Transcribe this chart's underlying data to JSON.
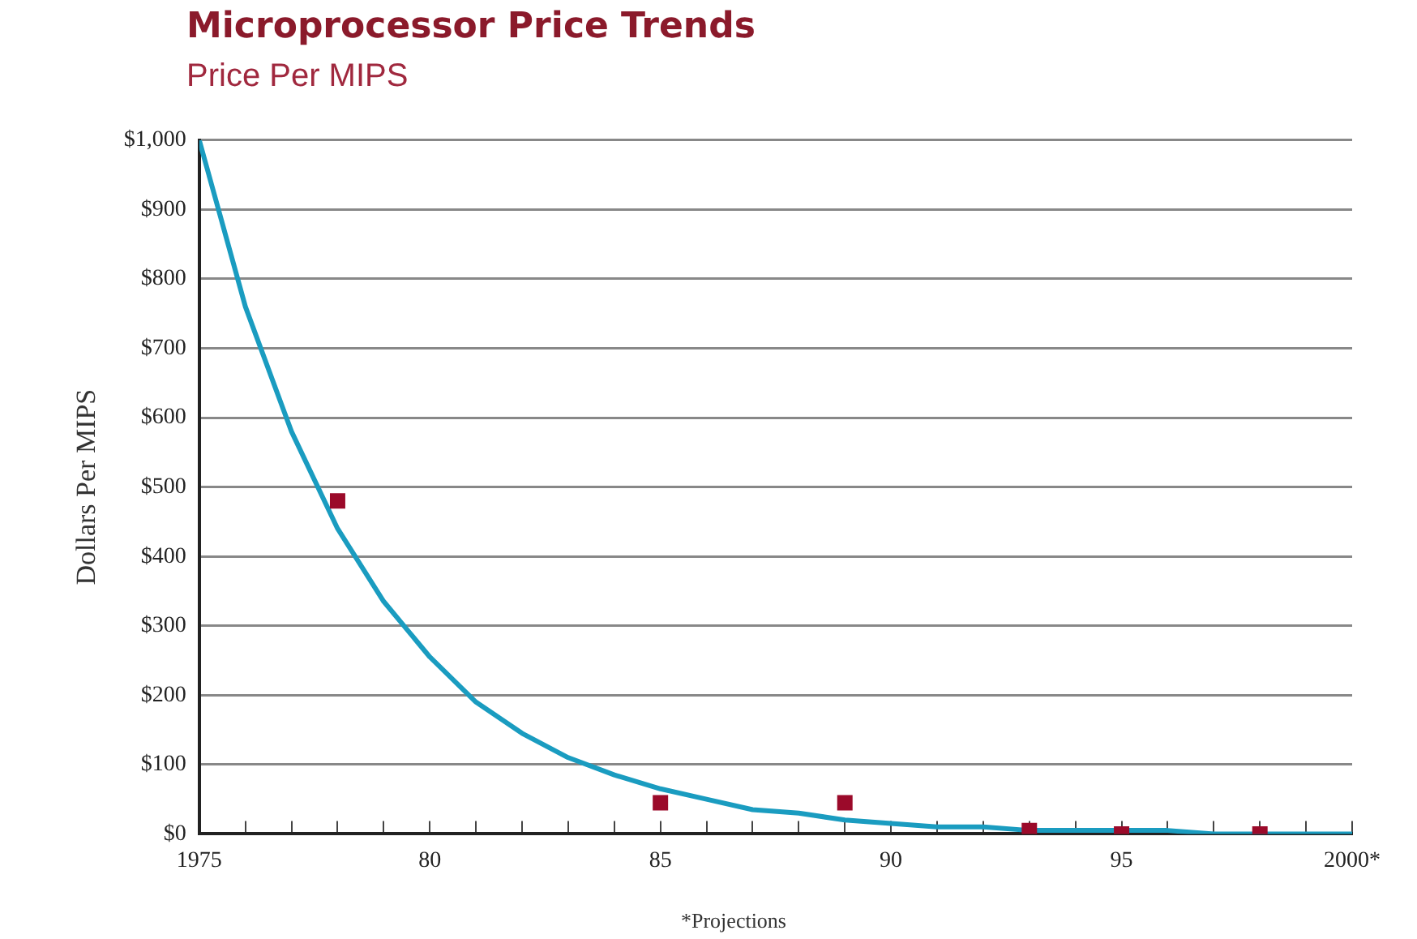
{
  "chart_data": {
    "type": "scatter",
    "title": "Microprocessor Price Trends",
    "subtitle": "Price Per MIPS",
    "ylabel": "Dollars Per MIPS",
    "annotations": [
      "*Projections"
    ],
    "xlim": [
      1975,
      2000
    ],
    "xticks": [
      {
        "value": 1975,
        "label": "1975"
      },
      {
        "value": 1976,
        "label": null
      },
      {
        "value": 1977,
        "label": null
      },
      {
        "value": 1978,
        "label": null
      },
      {
        "value": 1979,
        "label": null
      },
      {
        "value": 1980,
        "label": "80"
      },
      {
        "value": 1981,
        "label": null
      },
      {
        "value": 1982,
        "label": null
      },
      {
        "value": 1983,
        "label": null
      },
      {
        "value": 1984,
        "label": null
      },
      {
        "value": 1985,
        "label": "85"
      },
      {
        "value": 1986,
        "label": null
      },
      {
        "value": 1987,
        "label": null
      },
      {
        "value": 1988,
        "label": null
      },
      {
        "value": 1989,
        "label": null
      },
      {
        "value": 1990,
        "label": "90"
      },
      {
        "value": 1991,
        "label": null
      },
      {
        "value": 1992,
        "label": null
      },
      {
        "value": 1993,
        "label": null
      },
      {
        "value": 1994,
        "label": null
      },
      {
        "value": 1995,
        "label": "95"
      },
      {
        "value": 1996,
        "label": null
      },
      {
        "value": 1997,
        "label": null
      },
      {
        "value": 1998,
        "label": null
      },
      {
        "value": 1999,
        "label": null
      },
      {
        "value": 2000,
        "label": "2000*"
      }
    ],
    "ylim": [
      0,
      1000
    ],
    "yticks": [
      {
        "value": 0,
        "label": "$0"
      },
      {
        "value": 100,
        "label": "$100"
      },
      {
        "value": 200,
        "label": "$200"
      },
      {
        "value": 300,
        "label": "$300"
      },
      {
        "value": 400,
        "label": "$400"
      },
      {
        "value": 500,
        "label": "$500"
      },
      {
        "value": 600,
        "label": "$600"
      },
      {
        "value": 700,
        "label": "$700"
      },
      {
        "value": 800,
        "label": "$800"
      },
      {
        "value": 900,
        "label": "$900"
      },
      {
        "value": 1000,
        "label": "$1,000"
      }
    ],
    "grid": "y",
    "legend": false,
    "series": [
      {
        "type": "line",
        "marker": "none",
        "line_style": "solid",
        "color": "#1a9cc0",
        "x": [
          1975,
          1976,
          1977,
          1978,
          1979,
          1980,
          1981,
          1982,
          1983,
          1984,
          1985,
          1986,
          1987,
          1988,
          1989,
          1990,
          1991,
          1992,
          1993,
          1994,
          1995,
          1996,
          1997,
          1998,
          1999,
          2000
        ],
        "values": [
          1000,
          760,
          580,
          440,
          335,
          255,
          190,
          145,
          110,
          85,
          65,
          50,
          35,
          30,
          20,
          15,
          10,
          10,
          5,
          5,
          null,
          5,
          0,
          0,
          0,
          0
        ]
      },
      {
        "type": "scatter",
        "marker": "square",
        "color": "#9b0a2a",
        "x": [
          1978,
          1985,
          1989,
          1993,
          1995,
          1998
        ],
        "values": [
          480,
          45,
          45,
          5,
          0,
          0
        ]
      }
    ]
  }
}
